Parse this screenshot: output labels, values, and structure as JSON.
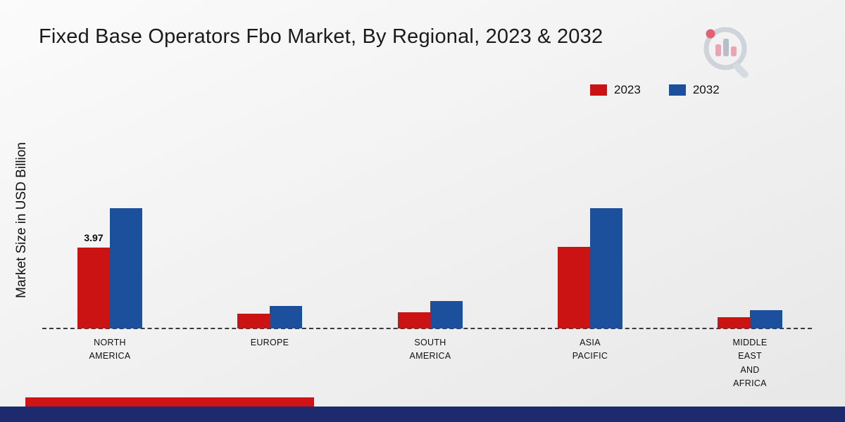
{
  "chart_data": {
    "type": "bar",
    "title": "Fixed Base Operators Fbo Market, By Regional, 2023 & 2032",
    "ylabel": "Market Size in USD Billion",
    "categories": [
      "NORTH\nAMERICA",
      "EUROPE",
      "SOUTH\nAMERICA",
      "ASIA\nPACIFIC",
      "MIDDLE\nEAST\nAND\nAFRICA"
    ],
    "series": [
      {
        "name": "2023",
        "color": "#cc1314",
        "values": [
          3.97,
          0.72,
          0.8,
          4.0,
          0.55
        ]
      },
      {
        "name": "2032",
        "color": "#1c4f9c",
        "values": [
          5.9,
          1.1,
          1.35,
          5.9,
          0.9
        ]
      }
    ],
    "annotations": [
      {
        "series_index": 0,
        "category_index": 0,
        "text": "3.97"
      }
    ],
    "ylim": [
      0,
      6.5
    ],
    "grid": false,
    "legend_position": "top-right",
    "baseline_style": "dashed"
  },
  "colors": {
    "bar_2023": "#cc1314",
    "bar_2032": "#1c4f9c",
    "footer_red": "#cf1418",
    "footer_navy": "#1d2b6e"
  }
}
